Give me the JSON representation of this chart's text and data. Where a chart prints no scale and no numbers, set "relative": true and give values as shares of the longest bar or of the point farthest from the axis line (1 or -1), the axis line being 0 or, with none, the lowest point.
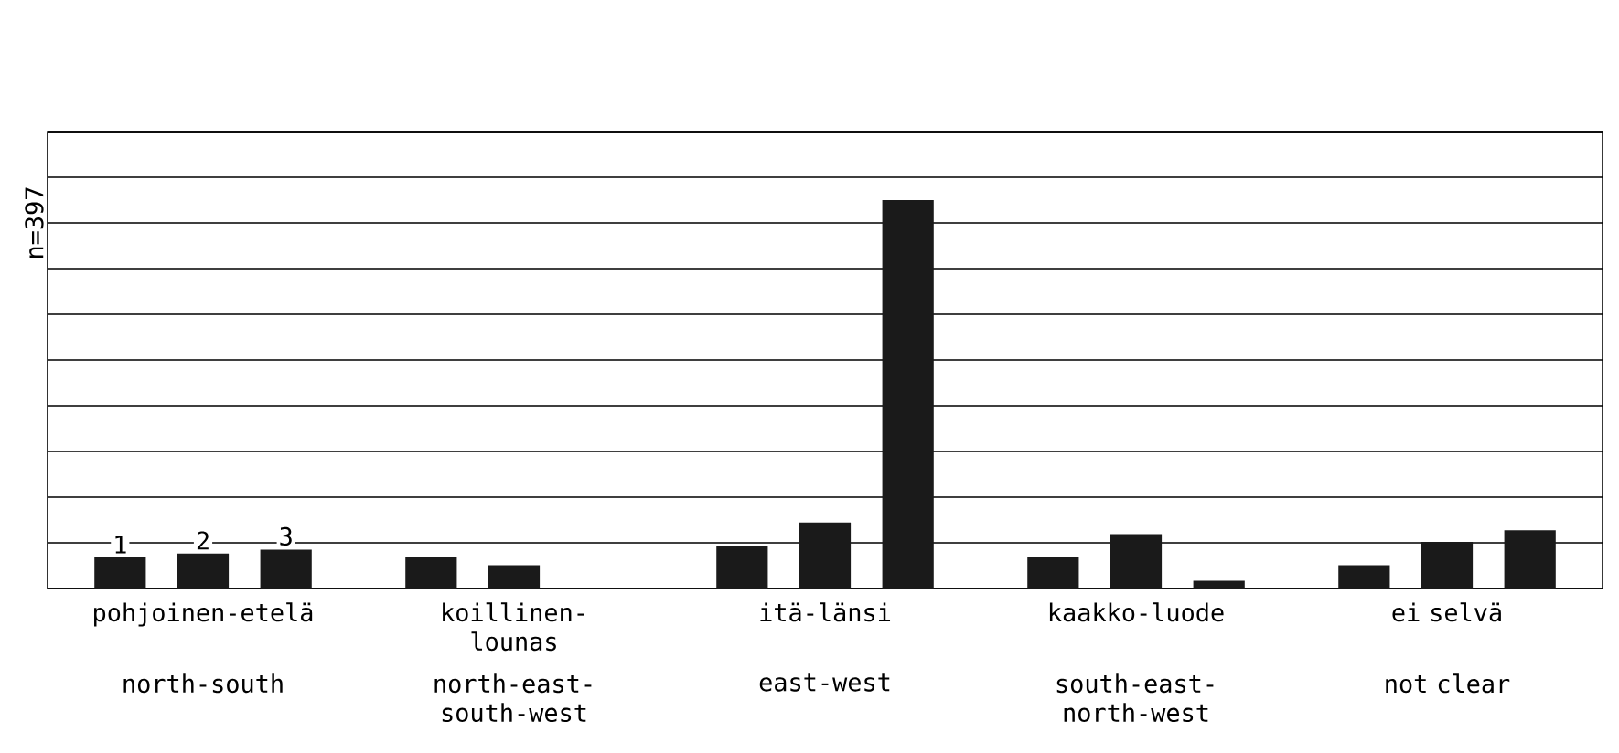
{
  "chart_data": {
    "type": "bar",
    "relative": true,
    "grid": "y",
    "ylabel": "n=397",
    "categories": [
      "pohjoinen-etelä",
      "koillinen-lounas",
      "itä-länsi",
      "kaakko-luode",
      "ei selvä"
    ],
    "annotations": [
      "north-south",
      "north-east-south-west",
      "east-west",
      "south-east-north-west",
      "not clear"
    ],
    "series": [
      {
        "name": "1",
        "color": "#1a1a1a",
        "values": [
          0.08,
          0.08,
          0.11,
          0.08,
          0.06
        ]
      },
      {
        "name": "2",
        "color": "#1a1a1a",
        "values": [
          0.09,
          0.06,
          0.17,
          0.14,
          0.12
        ]
      },
      {
        "name": "3",
        "color": "#1a1a1a",
        "values": [
          0.1,
          0,
          1,
          0.02,
          0.15
        ]
      }
    ]
  }
}
